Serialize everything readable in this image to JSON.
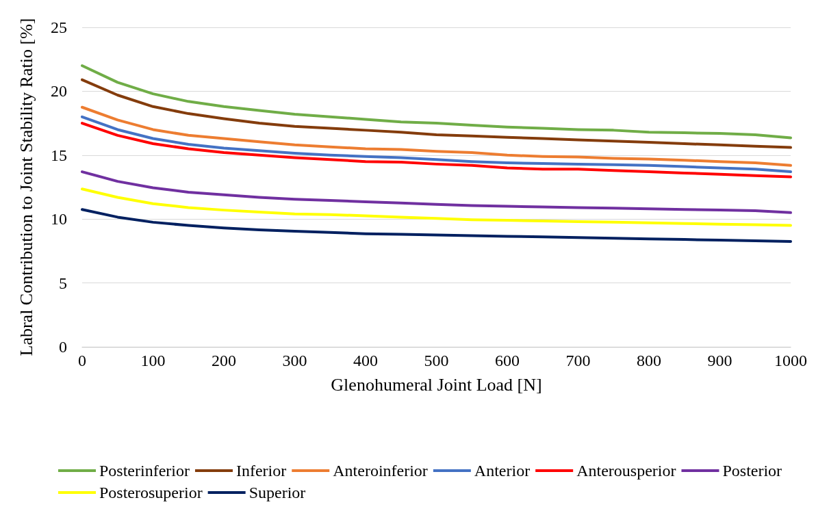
{
  "chart_data": {
    "type": "line",
    "xlabel": "Glenohumeral Joint Load [N]",
    "ylabel": "Labral Contribution to Joint Stability Ratio [%]",
    "x": [
      0,
      50,
      100,
      150,
      200,
      250,
      300,
      350,
      400,
      450,
      500,
      550,
      600,
      650,
      700,
      750,
      800,
      850,
      900,
      950,
      1000
    ],
    "xlim": [
      0,
      1000
    ],
    "xticks": [
      0,
      100,
      200,
      300,
      400,
      500,
      600,
      700,
      800,
      900,
      1000
    ],
    "ylim": [
      0,
      25
    ],
    "yticks": [
      0,
      5,
      10,
      15,
      20,
      25
    ],
    "grid": "y",
    "legend": "bottom",
    "marker": "none",
    "line_style": "solid",
    "series": [
      {
        "name": "Posterinferior",
        "color": "#70ad47",
        "values": [
          22.0,
          20.7,
          19.8,
          19.2,
          18.8,
          18.5,
          18.2,
          18.0,
          17.8,
          17.6,
          17.5,
          17.35,
          17.2,
          17.1,
          17.0,
          16.95,
          16.8,
          16.75,
          16.7,
          16.6,
          16.35
        ]
      },
      {
        "name": "Inferior",
        "color": "#843c0c",
        "values": [
          20.9,
          19.7,
          18.8,
          18.25,
          17.85,
          17.5,
          17.25,
          17.1,
          16.95,
          16.8,
          16.6,
          16.5,
          16.4,
          16.3,
          16.2,
          16.1,
          16.0,
          15.9,
          15.8,
          15.7,
          15.6
        ]
      },
      {
        "name": "Anteroinferior",
        "color": "#ed7d31",
        "values": [
          18.75,
          17.75,
          17.0,
          16.55,
          16.3,
          16.05,
          15.8,
          15.65,
          15.5,
          15.45,
          15.3,
          15.2,
          15.0,
          14.9,
          14.85,
          14.75,
          14.7,
          14.6,
          14.5,
          14.4,
          14.2
        ]
      },
      {
        "name": "Anterior",
        "color": "#4472c4",
        "values": [
          18.0,
          17.0,
          16.3,
          15.85,
          15.55,
          15.35,
          15.15,
          15.0,
          14.9,
          14.8,
          14.65,
          14.5,
          14.4,
          14.35,
          14.3,
          14.25,
          14.2,
          14.1,
          14.0,
          13.9,
          13.7
        ]
      },
      {
        "name": "Anterousperior",
        "color": "#ff0000",
        "values": [
          17.5,
          16.55,
          15.9,
          15.5,
          15.2,
          15.0,
          14.8,
          14.65,
          14.5,
          14.45,
          14.3,
          14.2,
          14.0,
          13.9,
          13.9,
          13.8,
          13.7,
          13.6,
          13.5,
          13.4,
          13.3
        ]
      },
      {
        "name": "Posterior",
        "color": "#7030a0",
        "values": [
          13.7,
          12.95,
          12.45,
          12.1,
          11.9,
          11.7,
          11.55,
          11.45,
          11.35,
          11.25,
          11.15,
          11.05,
          11.0,
          10.95,
          10.9,
          10.85,
          10.8,
          10.75,
          10.7,
          10.65,
          10.5
        ]
      },
      {
        "name": "Posterosuperior",
        "color": "#ffff00",
        "values": [
          12.35,
          11.7,
          11.2,
          10.9,
          10.7,
          10.55,
          10.4,
          10.35,
          10.25,
          10.15,
          10.05,
          9.95,
          9.9,
          9.85,
          9.8,
          9.75,
          9.7,
          9.65,
          9.6,
          9.55,
          9.5
        ]
      },
      {
        "name": "Superior",
        "color": "#002060",
        "values": [
          10.75,
          10.15,
          9.75,
          9.5,
          9.3,
          9.15,
          9.05,
          8.95,
          8.85,
          8.8,
          8.75,
          8.7,
          8.65,
          8.6,
          8.55,
          8.5,
          8.45,
          8.4,
          8.35,
          8.3,
          8.25
        ]
      }
    ]
  }
}
